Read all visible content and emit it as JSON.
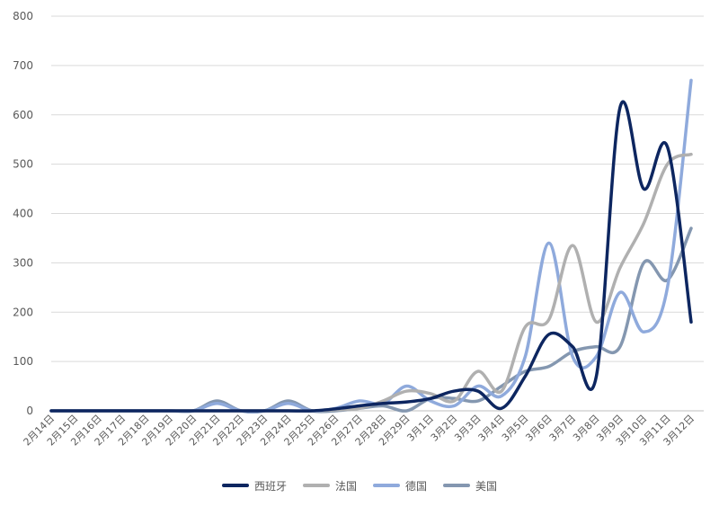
{
  "chart_data": {
    "type": "line",
    "smooth": true,
    "title": "",
    "xlabel": "",
    "ylabel": "",
    "ylim": [
      0,
      800
    ],
    "yticks": [
      0,
      100,
      200,
      300,
      400,
      500,
      600,
      700,
      800
    ],
    "grid": true,
    "legend_position": "bottom",
    "categories": [
      "2月14日",
      "2月15日",
      "2月16日",
      "2月17日",
      "2月18日",
      "2月19日",
      "2月20日",
      "2月21日",
      "2月22日",
      "2月23日",
      "2月24日",
      "2月25日",
      "2月26日",
      "2月27日",
      "2月28日",
      "2月29日",
      "3月1日",
      "3月2日",
      "3月3日",
      "3月4日",
      "3月5日",
      "3月6日",
      "3月7日",
      "3月8日",
      "3月9日",
      "3月10日",
      "3月11日",
      "3月12日"
    ],
    "series": [
      {
        "name": "西班牙",
        "color": "#0d2660",
        "values": [
          0,
          0,
          0,
          0,
          0,
          0,
          0,
          0,
          0,
          0,
          0,
          0,
          4,
          10,
          15,
          18,
          25,
          40,
          40,
          5,
          70,
          155,
          130,
          70,
          615,
          450,
          535,
          180
        ]
      },
      {
        "name": "法国",
        "color": "#b0b0b0",
        "values": [
          0,
          0,
          0,
          0,
          0,
          0,
          0,
          0,
          0,
          0,
          0,
          0,
          2,
          5,
          20,
          40,
          35,
          20,
          80,
          40,
          170,
          185,
          335,
          180,
          290,
          380,
          500,
          520
        ]
      },
      {
        "name": "德国",
        "color": "#8faadc",
        "values": [
          0,
          0,
          0,
          0,
          0,
          0,
          0,
          15,
          0,
          0,
          15,
          0,
          5,
          20,
          15,
          50,
          20,
          10,
          50,
          30,
          110,
          340,
          110,
          110,
          240,
          160,
          250,
          670
        ]
      },
      {
        "name": "美国",
        "color": "#8497b0",
        "values": [
          0,
          0,
          0,
          0,
          0,
          0,
          0,
          20,
          0,
          0,
          20,
          0,
          0,
          5,
          10,
          0,
          25,
          25,
          20,
          50,
          80,
          90,
          120,
          130,
          130,
          300,
          265,
          370
        ]
      }
    ]
  }
}
